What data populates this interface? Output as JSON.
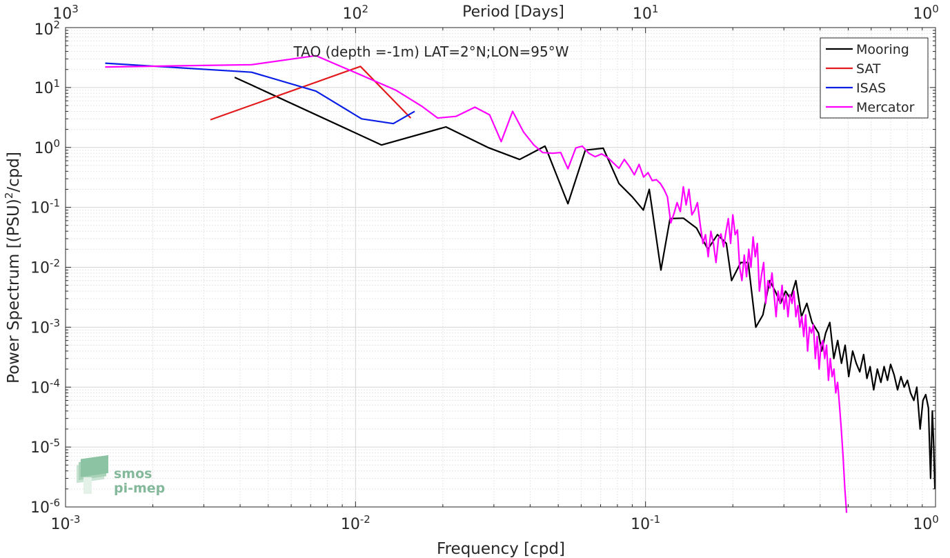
{
  "chart_data": {
    "type": "line",
    "title": "TAO (depth =-1m) LAT=2°N;LON=95°W",
    "xlabel": "Frequency [cpd]",
    "ylabel": "Power Spectrum [(PSU)",
    "ylabel_sup": "2",
    "ylabel_tail": "/cpd]",
    "top_xlabel": "Period [Days]",
    "xscale": "log",
    "yscale": "log",
    "xlim": [
      0.001,
      1
    ],
    "ylim": [
      1e-06,
      100
    ],
    "grid": true,
    "legend_position": "top-right",
    "x_ticks": [
      {
        "value": 0.001,
        "base": "10",
        "exp": "-3"
      },
      {
        "value": 0.01,
        "base": "10",
        "exp": "-2"
      },
      {
        "value": 0.1,
        "base": "10",
        "exp": "-1"
      },
      {
        "value": 1,
        "base": "10",
        "exp": "0"
      }
    ],
    "top_ticks": [
      {
        "value": 0.001,
        "base": "10",
        "exp": "3"
      },
      {
        "value": 0.01,
        "base": "10",
        "exp": "2"
      },
      {
        "value": 0.1,
        "base": "10",
        "exp": "1"
      },
      {
        "value": 1,
        "base": "10",
        "exp": "0"
      }
    ],
    "y_ticks": [
      {
        "value": 100,
        "base": "10",
        "exp": "2"
      },
      {
        "value": 10,
        "base": "10",
        "exp": "1"
      },
      {
        "value": 1,
        "base": "10",
        "exp": "0"
      },
      {
        "value": 0.1,
        "base": "10",
        "exp": "-1"
      },
      {
        "value": 0.01,
        "base": "10",
        "exp": "-2"
      },
      {
        "value": 0.001,
        "base": "10",
        "exp": "-3"
      },
      {
        "value": 0.0001,
        "base": "10",
        "exp": "-4"
      },
      {
        "value": 1e-05,
        "base": "10",
        "exp": "-5"
      },
      {
        "value": 1e-06,
        "base": "10",
        "exp": "-6"
      }
    ],
    "series": [
      {
        "name": "Mooring",
        "color": "#000000",
        "points": [
          [
            0.00383,
            14.8
          ],
          [
            0.00438,
            11
          ],
          [
            0.0123,
            1.1
          ],
          [
            0.0205,
            2.2
          ],
          [
            0.0286,
            1.0
          ],
          [
            0.0368,
            0.63
          ],
          [
            0.045,
            1.05
          ],
          [
            0.0454,
            0.96
          ],
          [
            0.054,
            0.115
          ],
          [
            0.062,
            0.9
          ],
          [
            0.0715,
            0.97
          ],
          [
            0.081,
            0.25
          ],
          [
            0.09,
            0.15
          ],
          [
            0.0983,
            0.09
          ],
          [
            0.103,
            0.2
          ],
          [
            0.113,
            0.009
          ],
          [
            0.1215,
            0.065
          ],
          [
            0.135,
            0.066
          ],
          [
            0.15,
            0.045
          ],
          [
            0.164,
            0.02
          ],
          [
            0.177,
            0.035
          ],
          [
            0.19,
            0.025
          ],
          [
            0.198,
            0.006
          ],
          [
            0.213,
            0.012
          ],
          [
            0.226,
            0.012
          ],
          [
            0.24,
            0.001
          ],
          [
            0.254,
            0.0016
          ],
          [
            0.268,
            0.006
          ],
          [
            0.28,
            0.004
          ],
          [
            0.292,
            0.0025
          ],
          [
            0.304,
            0.004
          ],
          [
            0.316,
            0.003
          ],
          [
            0.33,
            0.006
          ],
          [
            0.345,
            0.0015
          ],
          [
            0.36,
            0.0025
          ],
          [
            0.375,
            0.0012
          ],
          [
            0.395,
            0.0008
          ],
          [
            0.405,
            0.0004
          ],
          [
            0.418,
            0.0008
          ],
          [
            0.432,
            0.0012
          ],
          [
            0.446,
            0.0003
          ],
          [
            0.46,
            0.0006
          ],
          [
            0.474,
            0.00025
          ],
          [
            0.488,
            0.0005
          ],
          [
            0.502,
            0.00015
          ],
          [
            0.518,
            0.0004
          ],
          [
            0.533,
            0.00025
          ],
          [
            0.548,
            0.00018
          ],
          [
            0.565,
            0.00035
          ],
          [
            0.58,
            0.00014
          ],
          [
            0.595,
            0.00022
          ],
          [
            0.612,
            9e-05
          ],
          [
            0.63,
            0.0002
          ],
          [
            0.648,
            0.00012
          ],
          [
            0.665,
            0.00022
          ],
          [
            0.683,
            0.00013
          ],
          [
            0.7,
            0.00024
          ],
          [
            0.72,
            0.00016
          ],
          [
            0.74,
            9e-05
          ],
          [
            0.76,
            0.00015
          ],
          [
            0.78,
            0.0001
          ],
          [
            0.8,
            0.00013
          ],
          [
            0.82,
            8e-05
          ],
          [
            0.842,
            6e-05
          ],
          [
            0.862,
            0.0001
          ],
          [
            0.885,
            2e-05
          ],
          [
            0.905,
            6e-05
          ],
          [
            0.925,
            7.5e-05
          ],
          [
            0.945,
            4.5e-05
          ],
          [
            0.962,
            3e-06
          ],
          [
            0.975,
            4e-05
          ],
          [
            0.985,
            1.2e-05
          ],
          [
            0.995,
            2e-06
          ]
        ]
      },
      {
        "name": "SAT",
        "color": "#e31a1c",
        "points": [
          [
            0.00316,
            2.9
          ],
          [
            0.0104,
            22.5
          ],
          [
            0.0155,
            3.1
          ]
        ]
      },
      {
        "name": "ISAS",
        "color": "#0a1fe6",
        "points": [
          [
            0.00137,
            25.5
          ],
          [
            0.00438,
            18
          ],
          [
            0.0073,
            8.7
          ],
          [
            0.0105,
            3.0
          ],
          [
            0.0135,
            2.5
          ],
          [
            0.016,
            4.0
          ]
        ]
      },
      {
        "name": "Mercator",
        "color": "#ff00ff",
        "points": [
          [
            0.00137,
            22
          ],
          [
            0.00438,
            24
          ],
          [
            0.0073,
            34
          ],
          [
            0.0102,
            17
          ],
          [
            0.0138,
            9
          ],
          [
            0.017,
            4.8
          ],
          [
            0.0192,
            3.1
          ],
          [
            0.0222,
            3.3
          ],
          [
            0.0258,
            4.7
          ],
          [
            0.029,
            3.5
          ],
          [
            0.0318,
            1.25
          ],
          [
            0.0348,
            4.0
          ],
          [
            0.038,
            1.8
          ],
          [
            0.0412,
            1.1
          ],
          [
            0.0442,
            0.82
          ],
          [
            0.0478,
            0.8
          ],
          [
            0.051,
            0.82
          ],
          [
            0.054,
            0.44
          ],
          [
            0.0575,
            0.98
          ],
          [
            0.0605,
            1.05
          ],
          [
            0.0638,
            0.8
          ],
          [
            0.067,
            0.7
          ],
          [
            0.0705,
            0.78
          ],
          [
            0.074,
            0.68
          ],
          [
            0.0775,
            0.55
          ],
          [
            0.081,
            0.45
          ],
          [
            0.0845,
            0.63
          ],
          [
            0.088,
            0.48
          ],
          [
            0.0915,
            0.35
          ],
          [
            0.095,
            0.52
          ],
          [
            0.0985,
            0.32
          ],
          [
            0.102,
            0.38
          ],
          [
            0.1055,
            0.28
          ],
          [
            0.109,
            0.29
          ],
          [
            0.1125,
            0.25
          ],
          [
            0.1158,
            0.2
          ],
          [
            0.119,
            0.15
          ],
          [
            0.1222,
            0.055
          ],
          [
            0.1255,
            0.08
          ],
          [
            0.1285,
            0.12
          ],
          [
            0.1318,
            0.085
          ],
          [
            0.135,
            0.22
          ],
          [
            0.138,
            0.11
          ],
          [
            0.1412,
            0.2
          ],
          [
            0.1445,
            0.075
          ],
          [
            0.1478,
            0.09
          ],
          [
            0.151,
            0.12
          ],
          [
            0.1545,
            0.05
          ],
          [
            0.1578,
            0.025
          ],
          [
            0.161,
            0.035
          ],
          [
            0.1645,
            0.015
          ],
          [
            0.168,
            0.04
          ],
          [
            0.1715,
            0.025
          ],
          [
            0.175,
            0.012
          ],
          [
            0.1785,
            0.03
          ],
          [
            0.182,
            0.036
          ],
          [
            0.1858,
            0.022
          ],
          [
            0.1895,
            0.04
          ],
          [
            0.193,
            0.065
          ],
          [
            0.1965,
            0.025
          ],
          [
            0.2,
            0.075
          ],
          [
            0.2038,
            0.035
          ],
          [
            0.2075,
            0.042
          ],
          [
            0.2112,
            0.01
          ],
          [
            0.215,
            0.006
          ],
          [
            0.219,
            0.016
          ],
          [
            0.223,
            0.007
          ],
          [
            0.227,
            0.02
          ],
          [
            0.231,
            0.01
          ],
          [
            0.235,
            0.032
          ],
          [
            0.239,
            0.015
          ],
          [
            0.243,
            0.025
          ],
          [
            0.247,
            0.004
          ],
          [
            0.2512,
            0.0075
          ],
          [
            0.2555,
            0.012
          ],
          [
            0.2598,
            0.0025
          ],
          [
            0.2642,
            0.006
          ],
          [
            0.2686,
            0.0045
          ],
          [
            0.273,
            0.008
          ],
          [
            0.2775,
            0.0035
          ],
          [
            0.282,
            0.0015
          ],
          [
            0.2865,
            0.004
          ],
          [
            0.291,
            0.0025
          ],
          [
            0.2957,
            0.005
          ],
          [
            0.3005,
            0.002
          ],
          [
            0.3052,
            0.0035
          ],
          [
            0.31,
            0.0015
          ],
          [
            0.315,
            0.0035
          ],
          [
            0.32,
            0.0025
          ],
          [
            0.325,
            0.004
          ],
          [
            0.33,
            0.0015
          ],
          [
            0.3352,
            0.0023
          ],
          [
            0.3405,
            0.001
          ],
          [
            0.3458,
            0.0015
          ],
          [
            0.3512,
            0.0007
          ],
          [
            0.3567,
            0.0016
          ],
          [
            0.3622,
            0.0004
          ],
          [
            0.3678,
            0.001
          ],
          [
            0.3735,
            0.0008
          ],
          [
            0.3792,
            0.0011
          ],
          [
            0.385,
            0.0003
          ],
          [
            0.3908,
            0.0007
          ],
          [
            0.3968,
            0.0002
          ],
          [
            0.4028,
            0.0005
          ],
          [
            0.4088,
            0.0006
          ],
          [
            0.4148,
            0.0003
          ],
          [
            0.421,
            0.0005
          ],
          [
            0.4273,
            0.00013
          ],
          [
            0.4337,
            0.0003
          ],
          [
            0.44,
            0.00015
          ],
          [
            0.4465,
            0.0002
          ],
          [
            0.453,
            8e-05
          ],
          [
            0.4597,
            0.00012
          ],
          [
            0.4665,
            5e-05
          ],
          [
            0.4733,
            2e-05
          ],
          [
            0.48,
            7e-06
          ],
          [
            0.4868,
            2e-06
          ],
          [
            0.4935,
            8e-07
          ]
        ]
      }
    ]
  },
  "watermark": {
    "line1": "smos",
    "line2": "pi-mep",
    "color": "#84b89a"
  }
}
